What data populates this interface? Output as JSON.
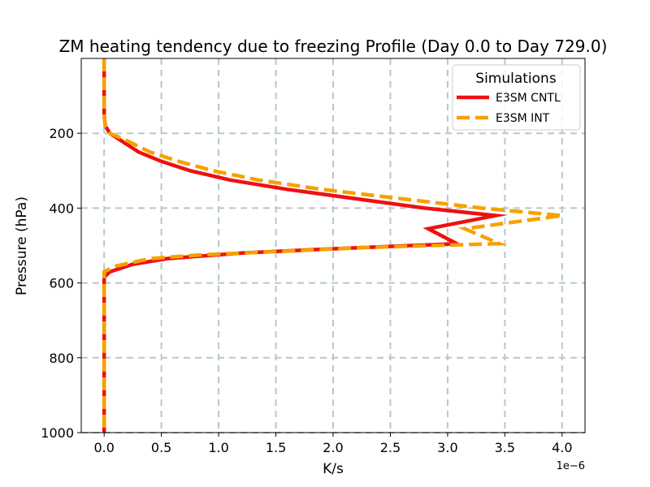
{
  "chart_data": {
    "type": "line",
    "title": "ZM heating tendency due to freezing Profile (Day 0.0 to Day 729.0)",
    "xlabel": "K/s",
    "ylabel": "Pressure (hPa)",
    "x_offset_text": "1e−6",
    "xlim": [
      -0.2,
      4.2
    ],
    "ylim": [
      1000,
      0
    ],
    "xticks": [
      0.0,
      0.5,
      1.0,
      1.5,
      2.0,
      2.5,
      3.0,
      3.5,
      4.0
    ],
    "xtick_labels": [
      "0.0",
      "0.5",
      "1.0",
      "1.5",
      "2.0",
      "2.5",
      "3.0",
      "3.5",
      "4.0"
    ],
    "yticks": [
      200,
      400,
      600,
      800,
      1000
    ],
    "ytick_labels": [
      "200",
      "400",
      "600",
      "800",
      "1000"
    ],
    "grid": true,
    "legend": {
      "title": "Simulations",
      "position": "top-right"
    },
    "series": [
      {
        "name": "E3SM CNTL",
        "color": "#ee1111",
        "style": "solid",
        "points": [
          [
            0.0,
            0
          ],
          [
            0.0,
            50
          ],
          [
            0.0,
            100
          ],
          [
            0.0,
            150
          ],
          [
            0.01,
            180
          ],
          [
            0.05,
            200
          ],
          [
            0.15,
            220
          ],
          [
            0.3,
            250
          ],
          [
            0.5,
            275
          ],
          [
            0.75,
            300
          ],
          [
            1.1,
            325
          ],
          [
            1.6,
            350
          ],
          [
            2.2,
            375
          ],
          [
            2.8,
            400
          ],
          [
            3.42,
            420
          ],
          [
            2.83,
            455
          ],
          [
            3.08,
            495
          ],
          [
            1.9,
            510
          ],
          [
            1.2,
            520
          ],
          [
            0.55,
            535
          ],
          [
            0.25,
            550
          ],
          [
            0.05,
            570
          ],
          [
            0.0,
            585
          ],
          [
            0.0,
            650
          ],
          [
            0.0,
            750
          ],
          [
            0.0,
            850
          ],
          [
            0.0,
            950
          ],
          [
            0.0,
            1000
          ]
        ]
      },
      {
        "name": "E3SM INT",
        "color": "#f5a100",
        "style": "dashed",
        "points": [
          [
            0.0,
            0
          ],
          [
            0.0,
            50
          ],
          [
            0.0,
            100
          ],
          [
            0.0,
            150
          ],
          [
            0.01,
            180
          ],
          [
            0.05,
            200
          ],
          [
            0.2,
            220
          ],
          [
            0.4,
            250
          ],
          [
            0.65,
            275
          ],
          [
            0.95,
            300
          ],
          [
            1.35,
            325
          ],
          [
            1.9,
            350
          ],
          [
            2.6,
            375
          ],
          [
            3.3,
            400
          ],
          [
            4.0,
            420
          ],
          [
            3.15,
            455
          ],
          [
            3.45,
            495
          ],
          [
            2.3,
            505
          ],
          [
            1.6,
            515
          ],
          [
            0.85,
            525
          ],
          [
            0.4,
            535
          ],
          [
            0.1,
            555
          ],
          [
            0.0,
            570
          ],
          [
            0.0,
            650
          ],
          [
            0.0,
            750
          ],
          [
            0.0,
            850
          ],
          [
            0.0,
            950
          ],
          [
            0.0,
            1000
          ]
        ]
      }
    ]
  }
}
